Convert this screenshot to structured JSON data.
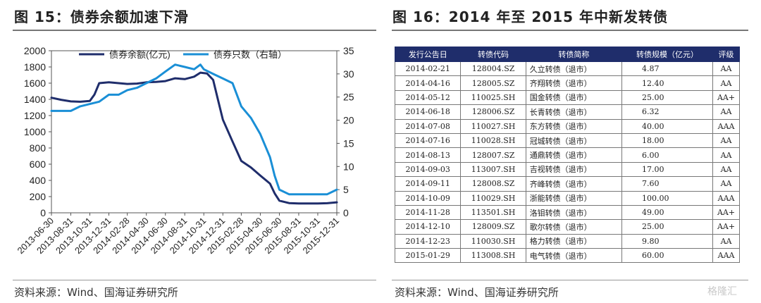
{
  "left_panel": {
    "title": "图 15：债券余额加速下滑",
    "source": "资料来源：Wind、国海证券研究所"
  },
  "right_panel": {
    "title": "图 16：2014 年至 2015 年中新发转债",
    "source": "资料来源：Wind、国海证券研究所",
    "table": {
      "headers": [
        "发行公告日",
        "转债代码",
        "转债简称",
        "转债规模（亿元）",
        "评级"
      ],
      "rows": [
        [
          "2014-02-21",
          "128004.SZ",
          "久立转债（退市）",
          "4.87",
          "AA"
        ],
        [
          "2014-04-16",
          "128005.SZ",
          "齐翔转债（退市）",
          "12.40",
          "AA"
        ],
        [
          "2014-05-12",
          "110025.SH",
          "国金转债（退市）",
          "25.00",
          "AA+"
        ],
        [
          "2014-06-18",
          "128006.SZ",
          "长青转债（退市）",
          "6.32",
          "AA"
        ],
        [
          "2014-07-08",
          "110027.SH",
          "东方转债（退市）",
          "40.00",
          "AAA"
        ],
        [
          "2014-07-16",
          "110028.SH",
          "冠城转债（退市）",
          "18.00",
          "AA"
        ],
        [
          "2014-08-13",
          "128007.SZ",
          "通鼎转债（退市）",
          "6.00",
          "AA"
        ],
        [
          "2014-09-03",
          "113007.SH",
          "吉视转债（退市）",
          "17.00",
          "AA"
        ],
        [
          "2014-09-11",
          "128008.SZ",
          "齐峰转债（退市）",
          "7.60",
          "AA"
        ],
        [
          "2014-10-09",
          "110029.SH",
          "浙能转债（退市）",
          "100.00",
          "AAA"
        ],
        [
          "2014-11-28",
          "113501.SH",
          "洛钼转债（退市）",
          "49.00",
          "AA+"
        ],
        [
          "2014-12-10",
          "128009.SZ",
          "歌尔转债（退市）",
          "25.00",
          "AA+"
        ],
        [
          "2014-12-23",
          "110030.SH",
          "格力转债（退市）",
          "9.80",
          "AA"
        ],
        [
          "2015-01-29",
          "113008.SH",
          "电气转债（退市）",
          "60.00",
          "AAA"
        ]
      ]
    }
  },
  "watermark": "格隆汇",
  "chart_data": {
    "type": "line",
    "x_tick_labels": [
      "2013-06-30",
      "2013-08-31",
      "2013-10-31",
      "2013-12-31",
      "2014-02-28",
      "2014-04-30",
      "2014-06-30",
      "2014-08-31",
      "2014-10-31",
      "2014-12-31",
      "2015-02-28",
      "2015-04-30",
      "2015-06-30",
      "2015-08-31",
      "2015-10-31",
      "2015-12-31"
    ],
    "ylim_left": [
      0,
      2000
    ],
    "yticks_left": [
      0,
      200,
      400,
      600,
      800,
      1000,
      1200,
      1400,
      1600,
      1800,
      2000
    ],
    "ylim_right": [
      0,
      35
    ],
    "yticks_right": [
      0,
      5,
      10,
      15,
      20,
      25,
      30,
      35
    ],
    "legend_position": "top",
    "series": [
      {
        "name": "债券余额(亿元)",
        "axis": "left",
        "color": "#1f2d6b",
        "points": [
          [
            "2013-06-30",
            1420
          ],
          [
            "2013-07-31",
            1395
          ],
          [
            "2013-08-31",
            1375
          ],
          [
            "2013-09-30",
            1370
          ],
          [
            "2013-10-31",
            1380
          ],
          [
            "2013-11-15",
            1460
          ],
          [
            "2013-11-30",
            1600
          ],
          [
            "2013-12-31",
            1610
          ],
          [
            "2014-01-31",
            1600
          ],
          [
            "2014-02-28",
            1590
          ],
          [
            "2014-03-31",
            1595
          ],
          [
            "2014-04-30",
            1610
          ],
          [
            "2014-05-31",
            1615
          ],
          [
            "2014-06-30",
            1625
          ],
          [
            "2014-07-31",
            1660
          ],
          [
            "2014-08-31",
            1650
          ],
          [
            "2014-09-30",
            1680
          ],
          [
            "2014-10-20",
            1730
          ],
          [
            "2014-11-10",
            1720
          ],
          [
            "2014-11-30",
            1640
          ],
          [
            "2014-12-15",
            1400
          ],
          [
            "2014-12-31",
            1150
          ],
          [
            "2015-01-31",
            880
          ],
          [
            "2015-02-28",
            640
          ],
          [
            "2015-03-31",
            560
          ],
          [
            "2015-04-30",
            460
          ],
          [
            "2015-05-31",
            360
          ],
          [
            "2015-06-15",
            240
          ],
          [
            "2015-06-30",
            150
          ],
          [
            "2015-07-31",
            120
          ],
          [
            "2015-08-31",
            115
          ],
          [
            "2015-09-30",
            115
          ],
          [
            "2015-10-31",
            115
          ],
          [
            "2015-11-30",
            118
          ],
          [
            "2015-12-31",
            130
          ]
        ]
      },
      {
        "name": "债券只数（右轴）",
        "axis": "right",
        "color": "#1a8fd6",
        "points": [
          [
            "2013-06-30",
            22
          ],
          [
            "2013-07-31",
            22
          ],
          [
            "2013-08-31",
            22
          ],
          [
            "2013-09-30",
            23
          ],
          [
            "2013-10-31",
            23.5
          ],
          [
            "2013-11-30",
            24
          ],
          [
            "2013-12-31",
            25.5
          ],
          [
            "2014-01-31",
            25.5
          ],
          [
            "2014-02-28",
            26.5
          ],
          [
            "2014-03-31",
            27
          ],
          [
            "2014-04-30",
            28
          ],
          [
            "2014-05-31",
            29
          ],
          [
            "2014-06-30",
            30.5
          ],
          [
            "2014-07-31",
            32
          ],
          [
            "2014-08-31",
            31.5
          ],
          [
            "2014-09-30",
            31
          ],
          [
            "2014-10-20",
            32
          ],
          [
            "2014-10-31",
            31
          ],
          [
            "2014-11-30",
            30
          ],
          [
            "2014-12-31",
            29
          ],
          [
            "2015-01-31",
            28
          ],
          [
            "2015-02-28",
            23
          ],
          [
            "2015-03-31",
            20.5
          ],
          [
            "2015-04-30",
            17
          ],
          [
            "2015-05-31",
            12
          ],
          [
            "2015-06-15",
            8
          ],
          [
            "2015-06-30",
            5
          ],
          [
            "2015-07-31",
            4
          ],
          [
            "2015-08-31",
            4
          ],
          [
            "2015-09-30",
            4
          ],
          [
            "2015-10-31",
            4
          ],
          [
            "2015-11-30",
            4
          ],
          [
            "2015-12-31",
            5
          ]
        ]
      }
    ]
  }
}
